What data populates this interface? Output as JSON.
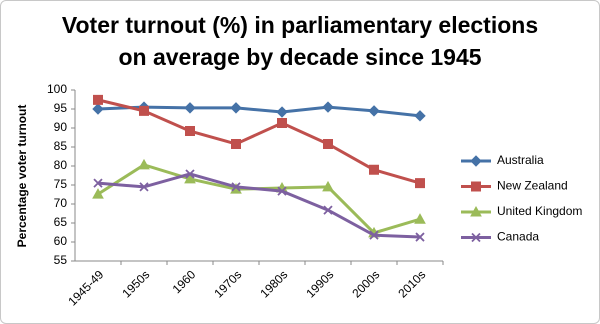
{
  "chart_data": {
    "type": "line",
    "title": "Voter turnout (%) in parliamentary elections\non average by decade since 1945",
    "y_label": "Percentage voter turnout",
    "categories": [
      "1945-49",
      "1950s",
      "1960",
      "1970s",
      "1980s",
      "1990s",
      "2000s",
      "2010s"
    ],
    "series": [
      {
        "name": "Australia",
        "color": "#4572a7",
        "marker": "diamond",
        "values": [
          95,
          95.5,
          95.3,
          95.3,
          94.2,
          95.5,
          94.5,
          93.2
        ]
      },
      {
        "name": "New Zealand",
        "color": "#c0504d",
        "marker": "square",
        "values": [
          97.4,
          94.5,
          89.2,
          85.8,
          91.3,
          85.8,
          79,
          75.5
        ]
      },
      {
        "name": "United Kingdom",
        "color": "#9bbb59",
        "marker": "triangle",
        "values": [
          72.6,
          80.3,
          76.6,
          73.9,
          74.2,
          74.5,
          62.4,
          66
        ]
      },
      {
        "name": "Canada",
        "color": "#7d60a0",
        "marker": "cross",
        "values": [
          75.5,
          74.5,
          77.9,
          74.5,
          73.4,
          68.4,
          61.8,
          61.3
        ]
      }
    ],
    "ylim": [
      55,
      100
    ],
    "yticks": [
      55,
      60,
      65,
      70,
      75,
      80,
      85,
      90,
      95,
      100
    ],
    "grid": false,
    "legend": "right"
  }
}
